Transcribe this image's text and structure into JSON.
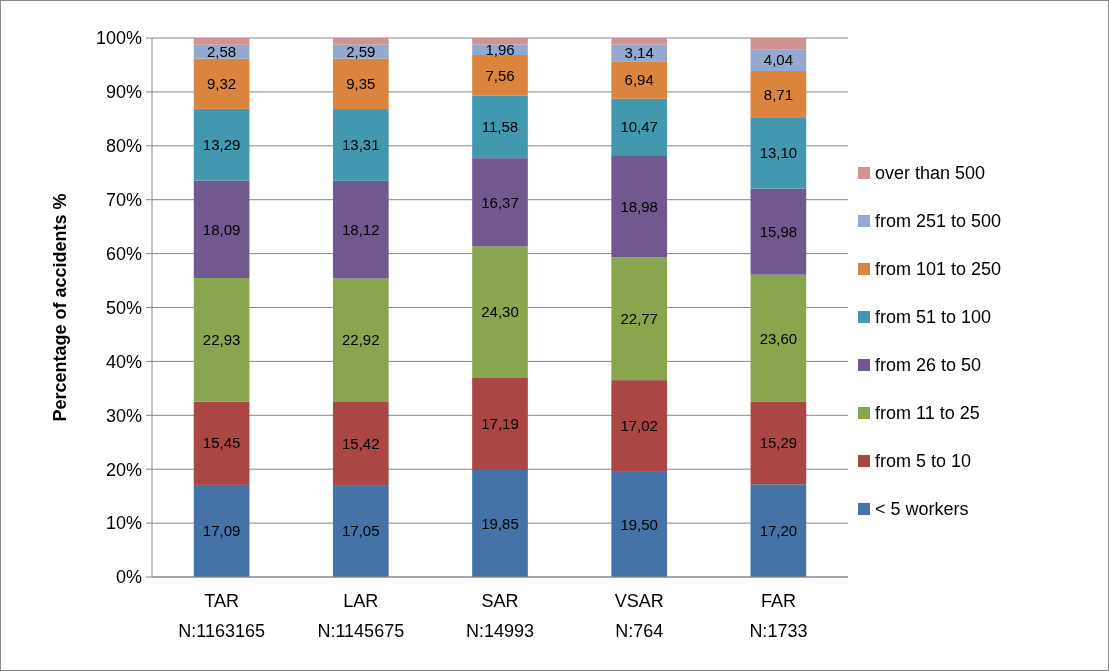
{
  "chart_data": {
    "type": "bar",
    "stacked": true,
    "ylabel": "Percentage of accidents  %",
    "categories": [
      "TAR\nN:1163165",
      "LAR\nN:1145675",
      "SAR\nN:14993",
      "VSAR\nN:764",
      "FAR\nN:1733"
    ],
    "ylim": [
      0,
      100
    ],
    "yticks": [
      {
        "value": 0,
        "label": "0%"
      },
      {
        "value": 10,
        "label": "10%"
      },
      {
        "value": 20,
        "label": "20%"
      },
      {
        "value": 30,
        "label": "30%"
      },
      {
        "value": 40,
        "label": "40%"
      },
      {
        "value": 50,
        "label": "50%"
      },
      {
        "value": 60,
        "label": "60%"
      },
      {
        "value": 70,
        "label": "70%"
      },
      {
        "value": 80,
        "label": "80%"
      },
      {
        "value": 90,
        "label": "90%"
      },
      {
        "value": 100,
        "label": "100%"
      }
    ],
    "grid": "y",
    "legend": "right",
    "series": [
      {
        "name": "< 5 workers",
        "color": "#4572a7",
        "values": [
          17.09,
          17.05,
          19.85,
          19.5,
          17.2
        ],
        "value_labels": [
          "17,09",
          "17,05",
          "19,85",
          "19,50",
          "17,20"
        ]
      },
      {
        "name": "from 5 to 10",
        "color": "#aa4643",
        "values": [
          15.45,
          15.42,
          17.19,
          17.02,
          15.29
        ],
        "value_labels": [
          "15,45",
          "15,42",
          "17,19",
          "17,02",
          "15,29"
        ]
      },
      {
        "name": "from 11 to 25",
        "color": "#89a54e",
        "values": [
          22.93,
          22.92,
          24.3,
          22.77,
          23.6
        ],
        "value_labels": [
          "22,93",
          "22,92",
          "24,30",
          "22,77",
          "23,60"
        ]
      },
      {
        "name": "from 26 to 50",
        "color": "#71588f",
        "values": [
          18.09,
          18.12,
          16.37,
          18.98,
          15.98
        ],
        "value_labels": [
          "18,09",
          "18,12",
          "16,37",
          "18,98",
          "15,98"
        ]
      },
      {
        "name": "from 51 to 100",
        "color": "#4198af",
        "values": [
          13.29,
          13.31,
          11.58,
          10.47,
          13.1
        ],
        "value_labels": [
          "13,29",
          "13,31",
          "11,58",
          "10,47",
          "13,10"
        ]
      },
      {
        "name": "from 101 to 250",
        "color": "#db843d",
        "values": [
          9.32,
          9.35,
          7.56,
          6.94,
          8.71
        ],
        "value_labels": [
          "9,32",
          "9,35",
          "7,56",
          "6,94",
          "8,71"
        ]
      },
      {
        "name": "from 251 to 500",
        "color": "#93a9cf",
        "values": [
          2.58,
          2.59,
          1.96,
          3.14,
          4.04
        ],
        "value_labels": [
          "2,58",
          "2,59",
          "1,96",
          "3,14",
          "4,04"
        ]
      },
      {
        "name": "over than 500",
        "color": "#d19392",
        "values": [
          1.25,
          1.24,
          1.19,
          1.18,
          2.08
        ],
        "value_labels": [
          null,
          null,
          null,
          null,
          null
        ]
      }
    ]
  }
}
